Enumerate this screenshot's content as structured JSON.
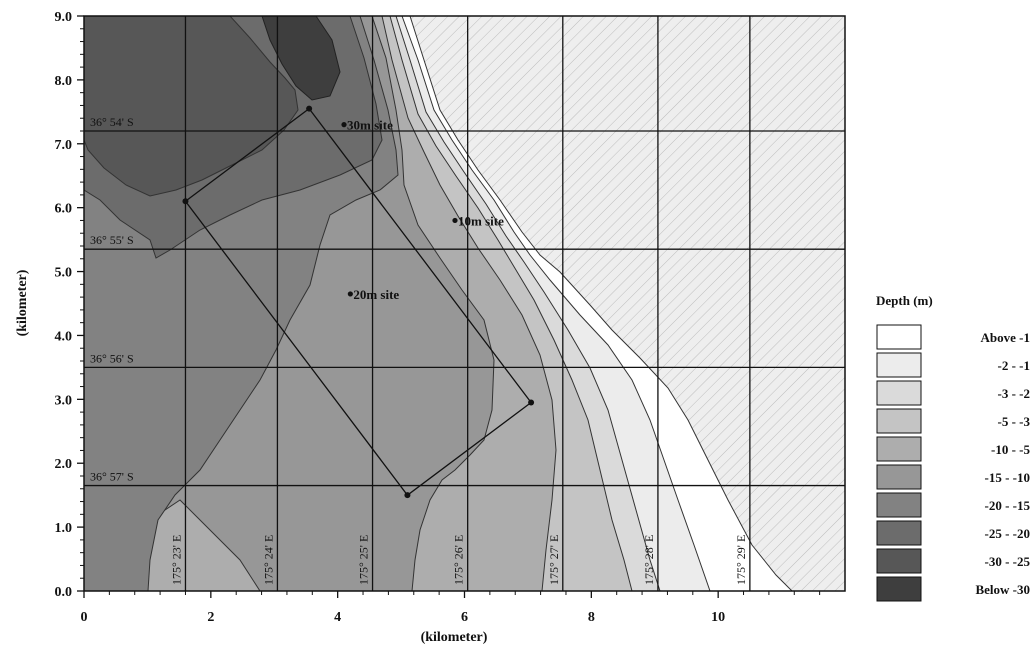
{
  "chart_data": {
    "type": "contour",
    "xlabel": "(kilometer)",
    "ylabel": "(kilometer)",
    "xlim": [
      0,
      12
    ],
    "ylim": [
      0,
      9
    ],
    "x_ticks": [
      "0",
      "2",
      "4",
      "6",
      "8",
      "10"
    ],
    "y_ticks": [
      "0.0",
      "1.0",
      "2.0",
      "3.0",
      "4.0",
      "5.0",
      "6.0",
      "7.0",
      "8.0",
      "9.0"
    ],
    "latitude_lines": [
      {
        "label": "36° 54' S",
        "y": 7.2
      },
      {
        "label": "36° 55' S",
        "y": 5.35
      },
      {
        "label": "36° 56' S",
        "y": 3.5
      },
      {
        "label": "36° 57' S",
        "y": 1.65
      }
    ],
    "longitude_lines": [
      {
        "label": "175° 23' E",
        "x": 1.6
      },
      {
        "label": "175° 24' E",
        "x": 3.05
      },
      {
        "label": "175° 25' E",
        "x": 4.55
      },
      {
        "label": "175° 26' E",
        "x": 6.05
      },
      {
        "label": "175° 27' E",
        "x": 7.55
      },
      {
        "label": "175° 28' E",
        "x": 9.05
      },
      {
        "label": "175° 29' E",
        "x": 10.5
      }
    ],
    "sites": [
      {
        "label": "30m site",
        "x": 4.1,
        "y": 7.3
      },
      {
        "label": "20m site",
        "x": 4.2,
        "y": 4.65
      },
      {
        "label": "10m site",
        "x": 5.85,
        "y": 5.8
      }
    ],
    "survey_box": [
      [
        1.6,
        6.1
      ],
      [
        3.55,
        7.55
      ],
      [
        7.05,
        2.95
      ],
      [
        5.1,
        1.5
      ]
    ],
    "legend": {
      "title": "Depth (m)",
      "entries": [
        {
          "label": "Above  -1",
          "color": "#ffffff"
        },
        {
          "label": "-2 -  -1",
          "color": "#ececec"
        },
        {
          "label": "-3 -  -2",
          "color": "#dadada"
        },
        {
          "label": "-5 -  -3",
          "color": "#c4c4c4"
        },
        {
          "label": "-10 -  -5",
          "color": "#adadad"
        },
        {
          "label": "-15 - -10",
          "color": "#979797"
        },
        {
          "label": "-20 - -15",
          "color": "#828282"
        },
        {
          "label": "-25 - -20",
          "color": "#6c6c6c"
        },
        {
          "label": "-30 - -25",
          "color": "#575757"
        },
        {
          "label": "Below -30",
          "color": "#3e3e3e"
        }
      ]
    }
  }
}
